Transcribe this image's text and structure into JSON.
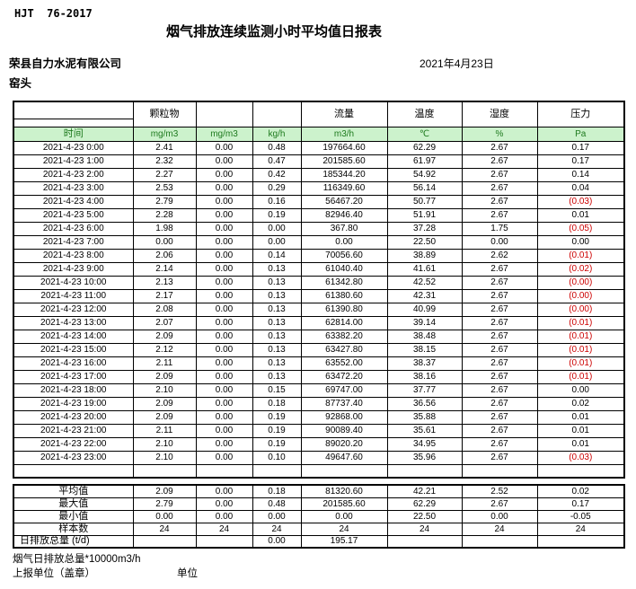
{
  "doc": {
    "standard": "HJT  76-2017",
    "title": "烟气排放连续监测小时平均值日报表",
    "company": "荣县自力水泥有限公司",
    "date": "2021年4月23日",
    "location": "窑头"
  },
  "colors": {
    "header_bg": "#ccf2cc",
    "header_text": "#1e7a1e",
    "negative": "#cc0000"
  },
  "table": {
    "group_headers": [
      "",
      "颗粒物",
      "",
      "",
      "流量",
      "温度",
      "湿度",
      "压力"
    ],
    "time_label": "时间",
    "units": [
      "mg/m3",
      "mg/m3",
      "kg/h",
      "m3/h",
      "℃",
      "%",
      "Pa"
    ],
    "rows": [
      {
        "time": "2021-4-23 0:00",
        "values": [
          "2.41",
          "0.00",
          "0.48",
          "197664.60",
          "62.29",
          "2.67",
          "0.17"
        ]
      },
      {
        "time": "2021-4-23 1:00",
        "values": [
          "2.32",
          "0.00",
          "0.47",
          "201585.60",
          "61.97",
          "2.67",
          "0.17"
        ]
      },
      {
        "time": "2021-4-23 2:00",
        "values": [
          "2.27",
          "0.00",
          "0.42",
          "185344.20",
          "54.92",
          "2.67",
          "0.14"
        ]
      },
      {
        "time": "2021-4-23 3:00",
        "values": [
          "2.53",
          "0.00",
          "0.29",
          "116349.60",
          "56.14",
          "2.67",
          "0.04"
        ]
      },
      {
        "time": "2021-4-23 4:00",
        "values": [
          "2.79",
          "0.00",
          "0.16",
          "56467.20",
          "50.77",
          "2.67",
          "(0.03)"
        ]
      },
      {
        "time": "2021-4-23 5:00",
        "values": [
          "2.28",
          "0.00",
          "0.19",
          "82946.40",
          "51.91",
          "2.67",
          "0.01"
        ]
      },
      {
        "time": "2021-4-23 6:00",
        "values": [
          "1.98",
          "0.00",
          "0.00",
          "367.80",
          "37.28",
          "1.75",
          "(0.05)"
        ]
      },
      {
        "time": "2021-4-23 7:00",
        "values": [
          "0.00",
          "0.00",
          "0.00",
          "0.00",
          "22.50",
          "0.00",
          "0.00"
        ]
      },
      {
        "time": "2021-4-23 8:00",
        "values": [
          "2.06",
          "0.00",
          "0.14",
          "70056.60",
          "38.89",
          "2.62",
          "(0.01)"
        ]
      },
      {
        "time": "2021-4-23 9:00",
        "values": [
          "2.14",
          "0.00",
          "0.13",
          "61040.40",
          "41.61",
          "2.67",
          "(0.02)"
        ]
      },
      {
        "time": "2021-4-23 10:00",
        "values": [
          "2.13",
          "0.00",
          "0.13",
          "61342.80",
          "42.52",
          "2.67",
          "(0.00)"
        ]
      },
      {
        "time": "2021-4-23 11:00",
        "values": [
          "2.17",
          "0.00",
          "0.13",
          "61380.60",
          "42.31",
          "2.67",
          "(0.00)"
        ]
      },
      {
        "time": "2021-4-23 12:00",
        "values": [
          "2.08",
          "0.00",
          "0.13",
          "61390.80",
          "40.99",
          "2.67",
          "(0.00)"
        ]
      },
      {
        "time": "2021-4-23 13:00",
        "values": [
          "2.07",
          "0.00",
          "0.13",
          "62814.00",
          "39.14",
          "2.67",
          "(0.01)"
        ]
      },
      {
        "time": "2021-4-23 14:00",
        "values": [
          "2.09",
          "0.00",
          "0.13",
          "63382.20",
          "38.48",
          "2.67",
          "(0.01)"
        ]
      },
      {
        "time": "2021-4-23 15:00",
        "values": [
          "2.12",
          "0.00",
          "0.13",
          "63427.80",
          "38.15",
          "2.67",
          "(0.01)"
        ]
      },
      {
        "time": "2021-4-23 16:00",
        "values": [
          "2.11",
          "0.00",
          "0.13",
          "63552.00",
          "38.37",
          "2.67",
          "(0.01)"
        ]
      },
      {
        "time": "2021-4-23 17:00",
        "values": [
          "2.09",
          "0.00",
          "0.13",
          "63472.20",
          "38.16",
          "2.67",
          "(0.01)"
        ]
      },
      {
        "time": "2021-4-23 18:00",
        "values": [
          "2.10",
          "0.00",
          "0.15",
          "69747.00",
          "37.77",
          "2.67",
          "0.00"
        ]
      },
      {
        "time": "2021-4-23 19:00",
        "values": [
          "2.09",
          "0.00",
          "0.18",
          "87737.40",
          "36.56",
          "2.67",
          "0.02"
        ]
      },
      {
        "time": "2021-4-23 20:00",
        "values": [
          "2.09",
          "0.00",
          "0.19",
          "92868.00",
          "35.88",
          "2.67",
          "0.01"
        ]
      },
      {
        "time": "2021-4-23 21:00",
        "values": [
          "2.11",
          "0.00",
          "0.19",
          "90089.40",
          "35.61",
          "2.67",
          "0.01"
        ]
      },
      {
        "time": "2021-4-23 22:00",
        "values": [
          "2.10",
          "0.00",
          "0.19",
          "89020.20",
          "34.95",
          "2.67",
          "0.01"
        ]
      },
      {
        "time": "2021-4-23 23:00",
        "values": [
          "2.10",
          "0.00",
          "0.10",
          "49647.60",
          "35.96",
          "2.67",
          "(0.03)"
        ]
      }
    ]
  },
  "summary": {
    "rows": [
      {
        "label": "平均值",
        "values": [
          "2.09",
          "0.00",
          "0.18",
          "81320.60",
          "42.21",
          "2.52",
          "0.02"
        ]
      },
      {
        "label": "最大值",
        "values": [
          "2.79",
          "0.00",
          "0.48",
          "201585.60",
          "62.29",
          "2.67",
          "0.17"
        ]
      },
      {
        "label": "最小值",
        "values": [
          "0.00",
          "0.00",
          "0.00",
          "0.00",
          "22.50",
          "0.00",
          "-0.05"
        ]
      },
      {
        "label": "样本数",
        "values": [
          "24",
          "24",
          "24",
          "24",
          "24",
          "24",
          "24"
        ]
      },
      {
        "label": "日排放总量 (t/d)",
        "label_align": "left",
        "values": [
          "",
          "",
          "0.00",
          "195.17",
          "",
          "",
          ""
        ]
      }
    ]
  },
  "footer": {
    "note": "烟气日排放总量*10000m3/h",
    "report_unit": "上报单位（盖章）",
    "unit_label": "单位"
  }
}
